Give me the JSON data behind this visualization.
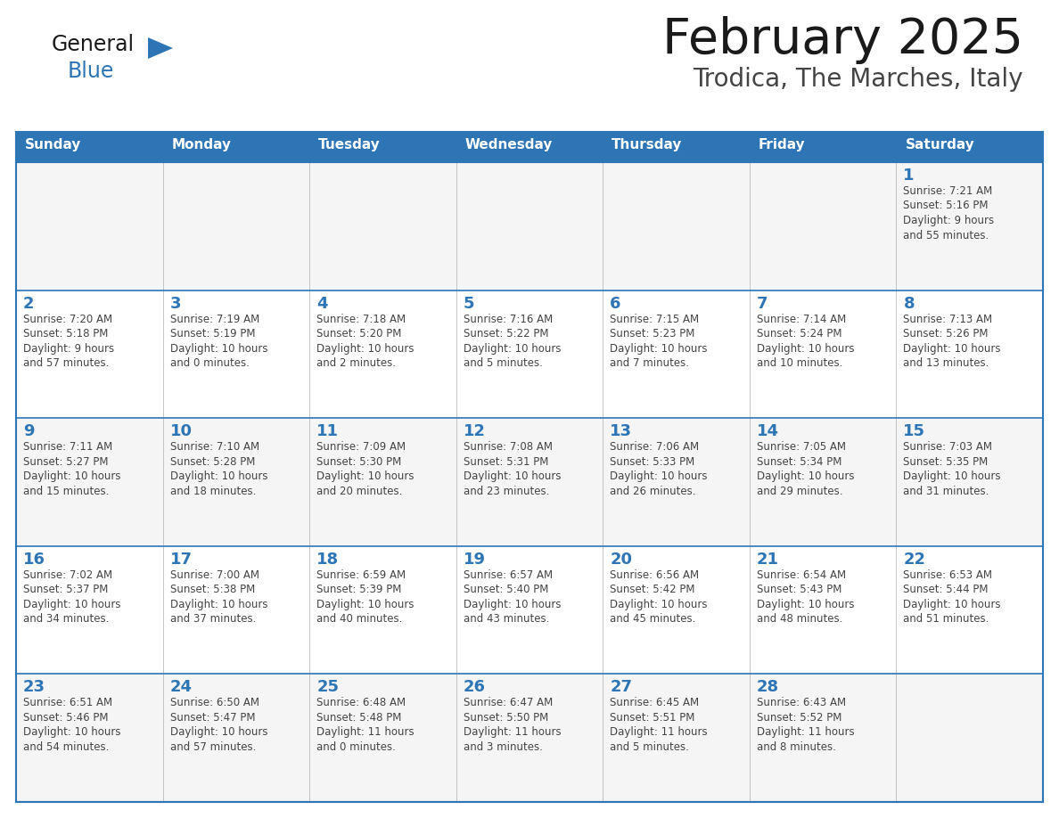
{
  "title": "February 2025",
  "subtitle": "Trodica, The Marches, Italy",
  "header_bg": "#2E75B6",
  "header_text_color": "#FFFFFF",
  "cell_bg_light": "#F5F5F5",
  "cell_bg_white": "#FFFFFF",
  "border_color": "#2E75B6",
  "row_line_color": "#2E75B6",
  "title_color": "#1a1a1a",
  "subtitle_color": "#444444",
  "day_number_color": "#2E75B6",
  "cell_text_color": "#444444",
  "logo_general_color": "#1a1a1a",
  "logo_blue_color": "#2E75B6",
  "logo_triangle_color": "#2E75B6",
  "days_of_week": [
    "Sunday",
    "Monday",
    "Tuesday",
    "Wednesday",
    "Thursday",
    "Friday",
    "Saturday"
  ],
  "weeks": [
    [
      {
        "day": null,
        "info": null
      },
      {
        "day": null,
        "info": null
      },
      {
        "day": null,
        "info": null
      },
      {
        "day": null,
        "info": null
      },
      {
        "day": null,
        "info": null
      },
      {
        "day": null,
        "info": null
      },
      {
        "day": 1,
        "info": "Sunrise: 7:21 AM\nSunset: 5:16 PM\nDaylight: 9 hours\nand 55 minutes."
      }
    ],
    [
      {
        "day": 2,
        "info": "Sunrise: 7:20 AM\nSunset: 5:18 PM\nDaylight: 9 hours\nand 57 minutes."
      },
      {
        "day": 3,
        "info": "Sunrise: 7:19 AM\nSunset: 5:19 PM\nDaylight: 10 hours\nand 0 minutes."
      },
      {
        "day": 4,
        "info": "Sunrise: 7:18 AM\nSunset: 5:20 PM\nDaylight: 10 hours\nand 2 minutes."
      },
      {
        "day": 5,
        "info": "Sunrise: 7:16 AM\nSunset: 5:22 PM\nDaylight: 10 hours\nand 5 minutes."
      },
      {
        "day": 6,
        "info": "Sunrise: 7:15 AM\nSunset: 5:23 PM\nDaylight: 10 hours\nand 7 minutes."
      },
      {
        "day": 7,
        "info": "Sunrise: 7:14 AM\nSunset: 5:24 PM\nDaylight: 10 hours\nand 10 minutes."
      },
      {
        "day": 8,
        "info": "Sunrise: 7:13 AM\nSunset: 5:26 PM\nDaylight: 10 hours\nand 13 minutes."
      }
    ],
    [
      {
        "day": 9,
        "info": "Sunrise: 7:11 AM\nSunset: 5:27 PM\nDaylight: 10 hours\nand 15 minutes."
      },
      {
        "day": 10,
        "info": "Sunrise: 7:10 AM\nSunset: 5:28 PM\nDaylight: 10 hours\nand 18 minutes."
      },
      {
        "day": 11,
        "info": "Sunrise: 7:09 AM\nSunset: 5:30 PM\nDaylight: 10 hours\nand 20 minutes."
      },
      {
        "day": 12,
        "info": "Sunrise: 7:08 AM\nSunset: 5:31 PM\nDaylight: 10 hours\nand 23 minutes."
      },
      {
        "day": 13,
        "info": "Sunrise: 7:06 AM\nSunset: 5:33 PM\nDaylight: 10 hours\nand 26 minutes."
      },
      {
        "day": 14,
        "info": "Sunrise: 7:05 AM\nSunset: 5:34 PM\nDaylight: 10 hours\nand 29 minutes."
      },
      {
        "day": 15,
        "info": "Sunrise: 7:03 AM\nSunset: 5:35 PM\nDaylight: 10 hours\nand 31 minutes."
      }
    ],
    [
      {
        "day": 16,
        "info": "Sunrise: 7:02 AM\nSunset: 5:37 PM\nDaylight: 10 hours\nand 34 minutes."
      },
      {
        "day": 17,
        "info": "Sunrise: 7:00 AM\nSunset: 5:38 PM\nDaylight: 10 hours\nand 37 minutes."
      },
      {
        "day": 18,
        "info": "Sunrise: 6:59 AM\nSunset: 5:39 PM\nDaylight: 10 hours\nand 40 minutes."
      },
      {
        "day": 19,
        "info": "Sunrise: 6:57 AM\nSunset: 5:40 PM\nDaylight: 10 hours\nand 43 minutes."
      },
      {
        "day": 20,
        "info": "Sunrise: 6:56 AM\nSunset: 5:42 PM\nDaylight: 10 hours\nand 45 minutes."
      },
      {
        "day": 21,
        "info": "Sunrise: 6:54 AM\nSunset: 5:43 PM\nDaylight: 10 hours\nand 48 minutes."
      },
      {
        "day": 22,
        "info": "Sunrise: 6:53 AM\nSunset: 5:44 PM\nDaylight: 10 hours\nand 51 minutes."
      }
    ],
    [
      {
        "day": 23,
        "info": "Sunrise: 6:51 AM\nSunset: 5:46 PM\nDaylight: 10 hours\nand 54 minutes."
      },
      {
        "day": 24,
        "info": "Sunrise: 6:50 AM\nSunset: 5:47 PM\nDaylight: 10 hours\nand 57 minutes."
      },
      {
        "day": 25,
        "info": "Sunrise: 6:48 AM\nSunset: 5:48 PM\nDaylight: 11 hours\nand 0 minutes."
      },
      {
        "day": 26,
        "info": "Sunrise: 6:47 AM\nSunset: 5:50 PM\nDaylight: 11 hours\nand 3 minutes."
      },
      {
        "day": 27,
        "info": "Sunrise: 6:45 AM\nSunset: 5:51 PM\nDaylight: 11 hours\nand 5 minutes."
      },
      {
        "day": 28,
        "info": "Sunrise: 6:43 AM\nSunset: 5:52 PM\nDaylight: 11 hours\nand 8 minutes."
      },
      {
        "day": null,
        "info": null
      }
    ]
  ]
}
